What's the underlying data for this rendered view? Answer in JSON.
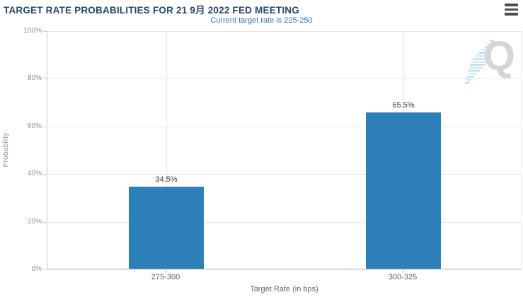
{
  "header": {
    "title": "TARGET RATE PROBABILITIES FOR 21 9月 2022 FED MEETING",
    "subtitle": "Current target rate is 225-250",
    "menu_icon": "hamburger-menu"
  },
  "colors": {
    "title": "#24496b",
    "subtitle": "#2e74b5",
    "bar": "#2d7fb8",
    "grid": "#e6e6e6",
    "axis_line": "#a8a8a8",
    "y_tick_label": "#8f8f8f",
    "x_tick_label": "#5f5f5f",
    "value_label": "#3c3c3c",
    "watermark_letter": "#d5d5d5",
    "watermark_stripe": "#a5d9f3"
  },
  "chart_data": {
    "type": "bar",
    "title": "TARGET RATE PROBABILITIES FOR 21 9月 2022 FED MEETING",
    "subtitle": "Current target rate is 225-250",
    "categories": [
      "275-300",
      "300-325"
    ],
    "values": [
      34.5,
      65.5
    ],
    "value_labels": [
      "34.5%",
      "65.5%"
    ],
    "xlabel": "Target Rate (in bps)",
    "ylabel": "Probability",
    "ylim": [
      0,
      100
    ],
    "ytick_step": 20,
    "ytick_labels": [
      "0%",
      "20%",
      "40%",
      "60%",
      "80%",
      "100%"
    ],
    "grid": true,
    "legend_position": "none"
  },
  "watermark": {
    "letter": "Q"
  }
}
